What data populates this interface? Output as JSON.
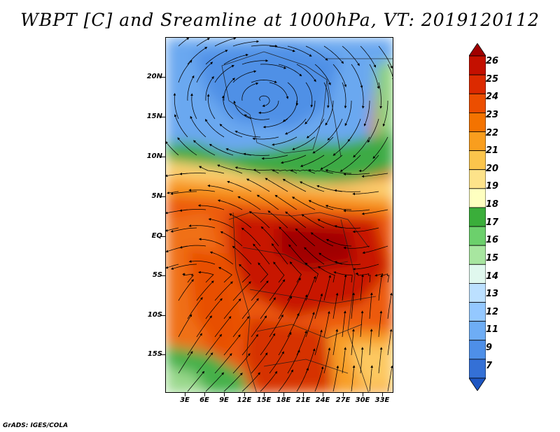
{
  "title": "WBPT [C] and Sreamline at 1000hPa, VT: 2019120112",
  "credit": "GrADS: IGES/COLA",
  "map": {
    "y_ticks": [
      "20N",
      "15N",
      "10N",
      "5N",
      "EQ",
      "5S",
      "10S",
      "15S"
    ],
    "x_ticks": [
      "3E",
      "6E",
      "9E",
      "12E",
      "15E",
      "18E",
      "21E",
      "24E",
      "27E",
      "30E",
      "33E"
    ]
  },
  "colorbar": {
    "labels": [
      "26",
      "25",
      "24",
      "23",
      "22",
      "21",
      "20",
      "19",
      "18",
      "17",
      "16",
      "15",
      "14",
      "13",
      "12",
      "11",
      "9",
      "7"
    ],
    "colors": [
      "#a00000",
      "#c41000",
      "#dc2a00",
      "#ec4e00",
      "#f47300",
      "#f99e1e",
      "#fbc54c",
      "#fde38a",
      "#feffc0",
      "#3aae3a",
      "#6cd06c",
      "#a8e6a0",
      "#e0f8ee",
      "#bce0ff",
      "#94c8ff",
      "#6eadf5",
      "#4e8fe8",
      "#3470d6",
      "#1e56c2"
    ]
  }
}
